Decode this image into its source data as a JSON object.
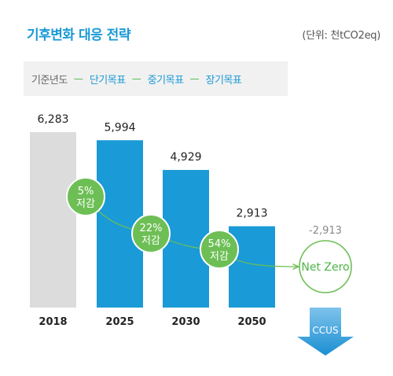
{
  "header": {
    "title": "기후변화 대응 전략",
    "unit": "(단위: 천tCO2eq)"
  },
  "legend": {
    "base": "기준년도",
    "items": [
      "단기목표",
      "중기목표",
      "장기목표"
    ]
  },
  "colors": {
    "base_bar": "#dcdcdc",
    "target_bar": "#1a9ad6",
    "accent_green": "#6dbf55",
    "arrow_gradient_top": "#7ec3ec",
    "arrow_gradient_bottom": "#1a8fd2"
  },
  "chart_data": {
    "type": "bar",
    "categories": [
      "2018",
      "2025",
      "2030",
      "2050"
    ],
    "values": [
      6283,
      5994,
      4929,
      2913
    ],
    "value_labels": [
      "6,283",
      "5,994",
      "4,929",
      "2,913"
    ],
    "annotations": [
      {
        "between": [
          "2018",
          "2025"
        ],
        "line1": "5%",
        "line2": "저감"
      },
      {
        "between": [
          "2025",
          "2030"
        ],
        "line1": "22%",
        "line2": "저감"
      },
      {
        "between": [
          "2030",
          "2050"
        ],
        "line1": "54%",
        "line2": "저감"
      }
    ],
    "offset": {
      "label": "Net Zero",
      "value": -2913,
      "value_label": "-2,913",
      "method": "CCUS"
    },
    "ylim": [
      0,
      7000
    ]
  }
}
